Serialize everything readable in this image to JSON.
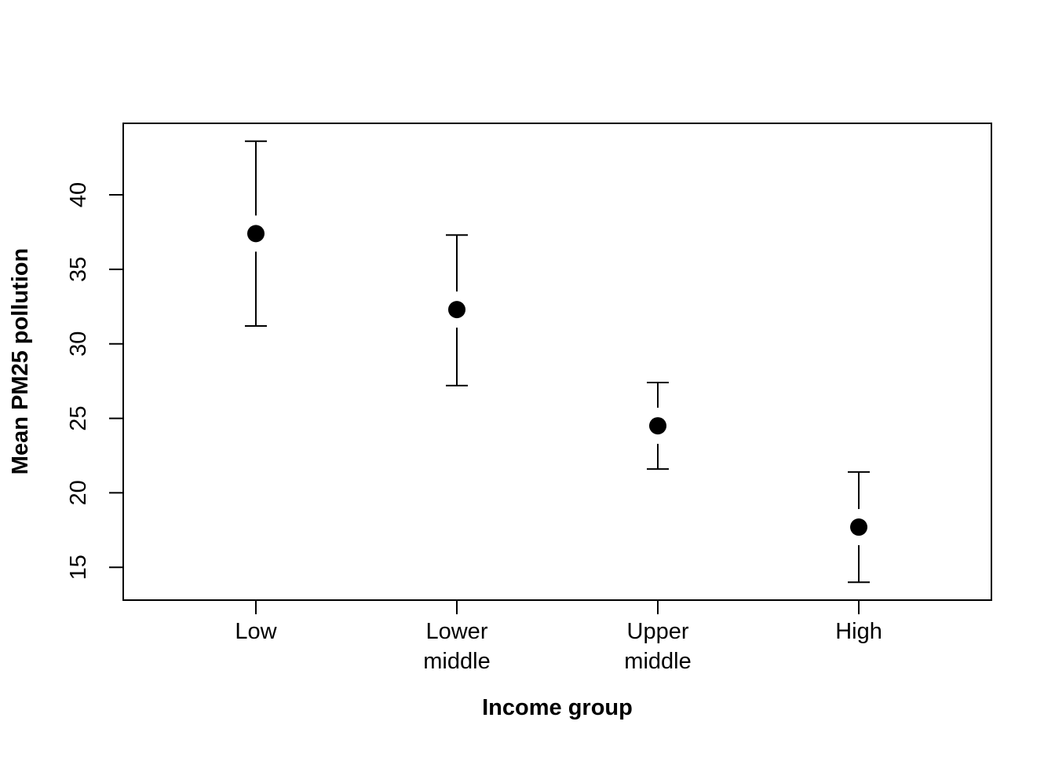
{
  "chart_data": {
    "type": "scatter",
    "subtype": "point-with-error-bars",
    "title": "",
    "xlabel": "Income group",
    "ylabel": "Mean PM25 pollution",
    "categories": [
      [
        "Low"
      ],
      [
        "Lower",
        "middle"
      ],
      [
        "Upper",
        "middle"
      ],
      [
        "High"
      ]
    ],
    "series": [
      {
        "values": [
          37.4,
          32.3,
          24.5,
          17.7
        ],
        "lower": [
          31.2,
          27.2,
          21.6,
          14.0
        ],
        "upper": [
          43.6,
          37.3,
          27.4,
          21.4
        ]
      }
    ],
    "yticks": [
      15,
      20,
      25,
      30,
      35,
      40
    ],
    "ylim": [
      12.8,
      44.8
    ],
    "xlim": [
      0.34,
      4.66
    ],
    "grid": false,
    "legend": "none",
    "colors": {
      "point": "#000000",
      "errorbar": "#000000",
      "axis": "#000000",
      "background": "#ffffff"
    }
  }
}
